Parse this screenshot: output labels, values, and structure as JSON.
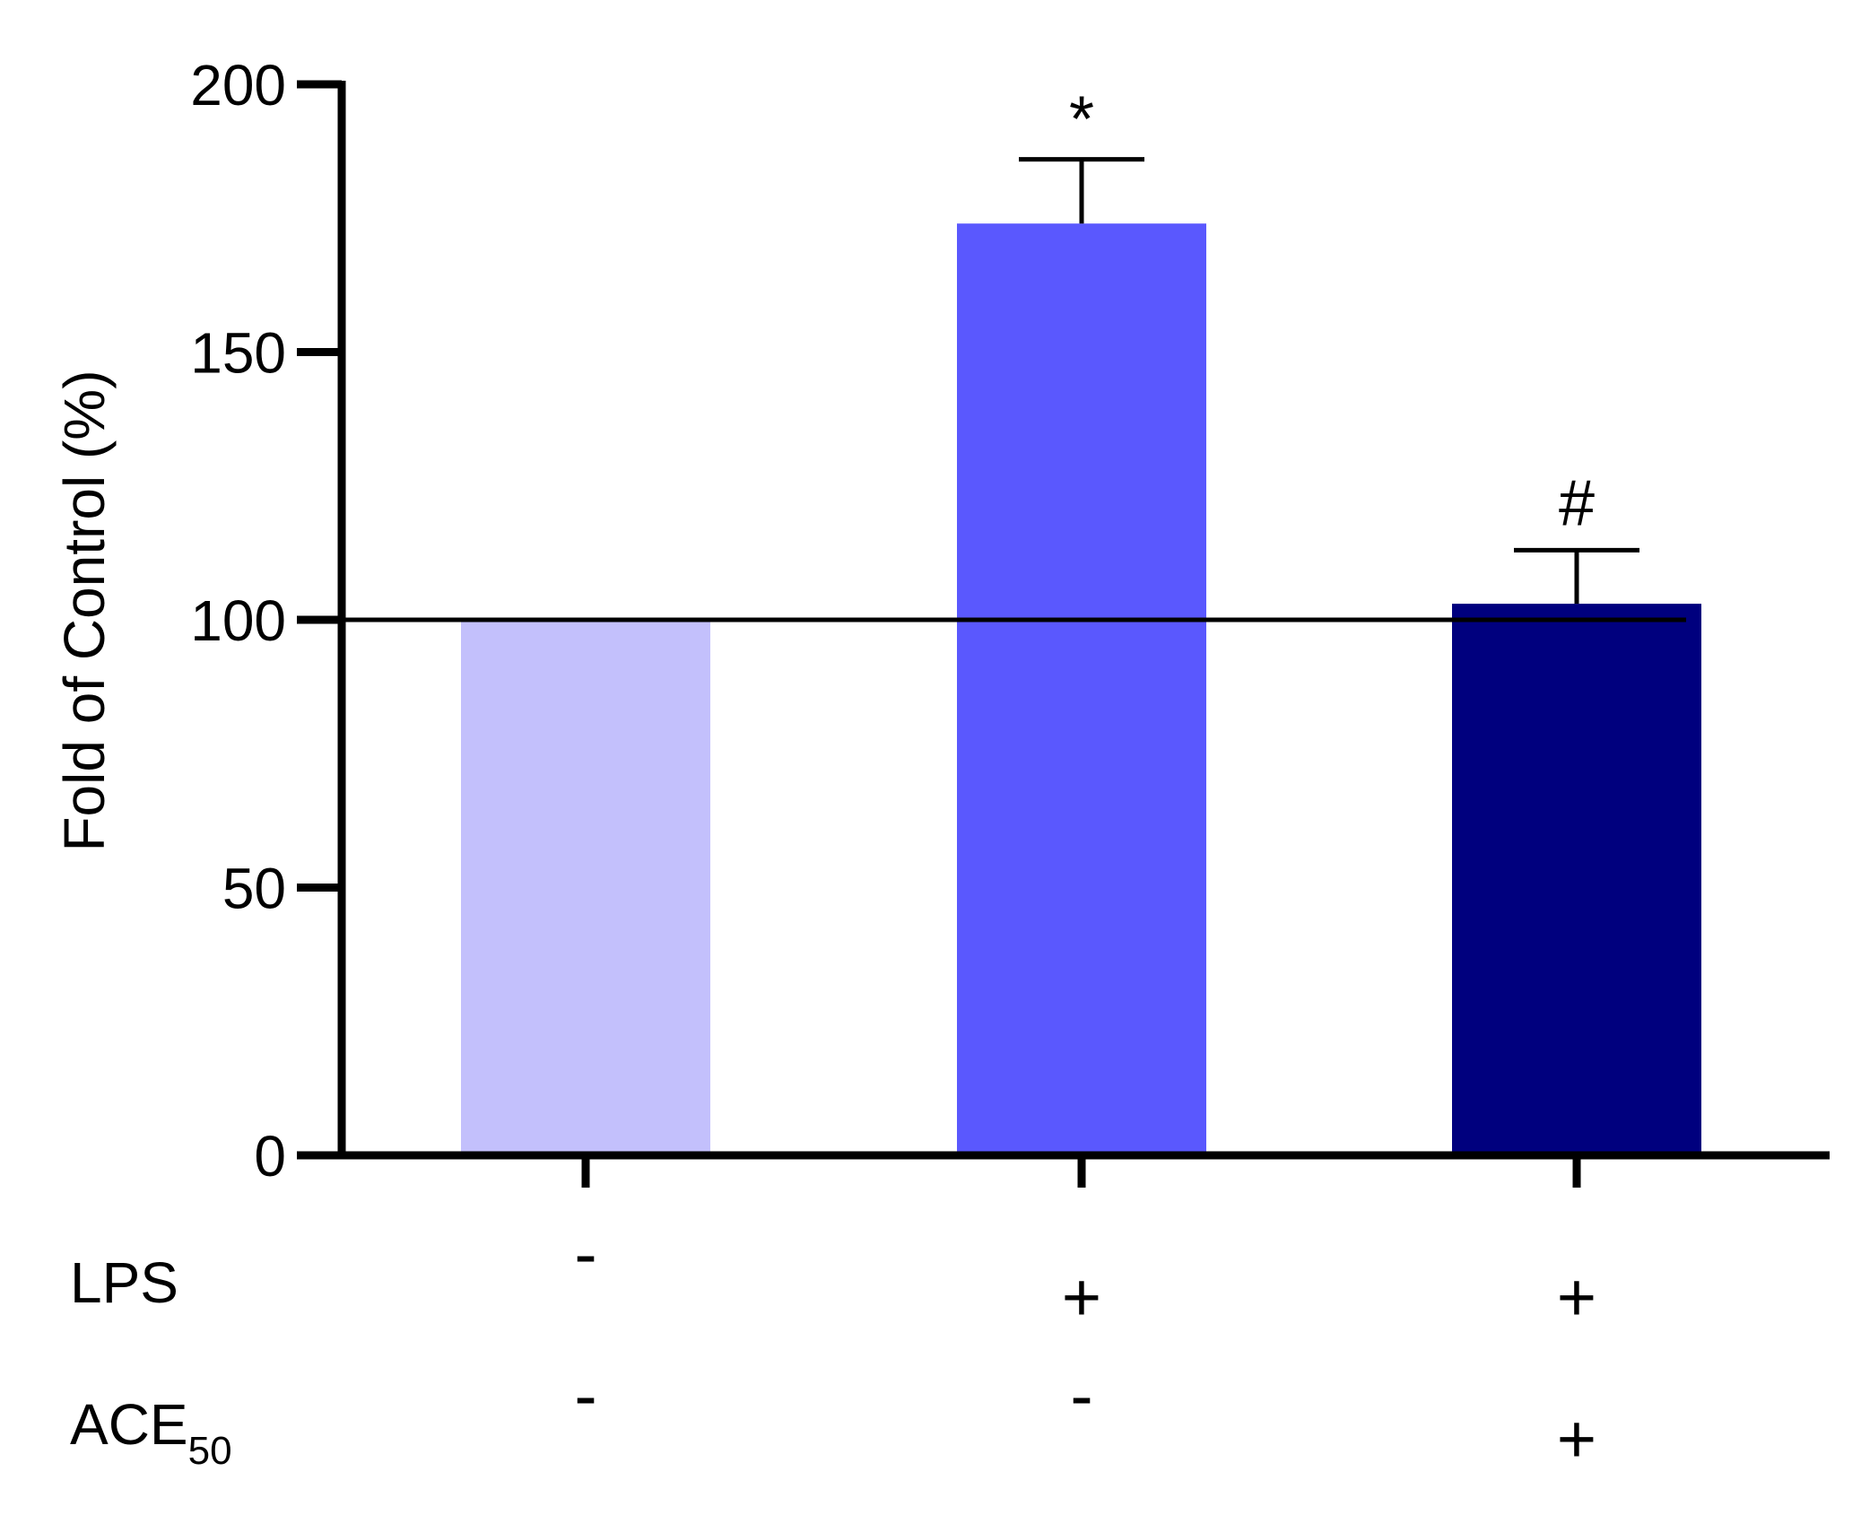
{
  "chart_data": {
    "type": "bar",
    "categories": [
      "",
      "",
      ""
    ],
    "values": [
      100,
      174,
      103
    ],
    "errors": [
      0,
      12,
      10
    ],
    "colors": [
      "#c3c0fc",
      "#5a58fe",
      "#00007e"
    ],
    "annotations": [
      "",
      "*",
      "#"
    ],
    "ylabel": "Fold of Control (%)",
    "ylim": [
      0,
      200
    ],
    "yticks": [
      "0",
      "50",
      "100",
      "150",
      "200"
    ],
    "reference_line": 100,
    "grid": false,
    "conditions": [
      {
        "label": "LPS",
        "subscript": "",
        "signs": [
          "-",
          "+",
          "+"
        ]
      },
      {
        "label": "ACE",
        "subscript": "50",
        "signs": [
          "-",
          "-",
          "+"
        ]
      }
    ]
  }
}
